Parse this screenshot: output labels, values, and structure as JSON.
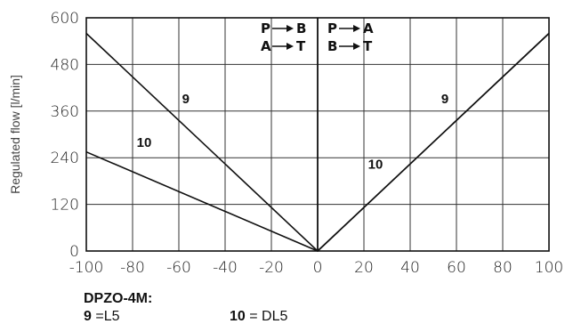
{
  "chart_data": {
    "type": "line",
    "title": "",
    "xlabel": "",
    "ylabel": "Regulated flow [l/min]",
    "xlim": [
      -100,
      100
    ],
    "ylim": [
      0,
      600
    ],
    "x_ticks": [
      -100,
      -80,
      -60,
      -40,
      -20,
      0,
      20,
      40,
      60,
      80,
      100
    ],
    "y_ticks": [
      0,
      120,
      240,
      360,
      480,
      600
    ],
    "grid": true,
    "series": [
      {
        "name": "9",
        "points": [
          [
            -100,
            560
          ],
          [
            0,
            0
          ],
          [
            100,
            560
          ]
        ],
        "label_positions": [
          [
            -57,
            380
          ],
          [
            55,
            380
          ]
        ]
      },
      {
        "name": "10",
        "points": [
          [
            -100,
            255
          ],
          [
            0,
            0
          ],
          [
            100,
            560
          ]
        ],
        "label_positions": [
          [
            -75,
            268
          ],
          [
            25,
            212
          ]
        ]
      }
    ],
    "annotations": {
      "left": [
        "P",
        "B",
        "A",
        "T"
      ],
      "right": [
        "P",
        "A",
        "B",
        "T"
      ]
    },
    "legend": {
      "title": "DPZO-4M:",
      "items": [
        {
          "key": "9",
          "text": " =L5"
        },
        {
          "key": "10",
          "text": " = DL5"
        }
      ]
    }
  }
}
